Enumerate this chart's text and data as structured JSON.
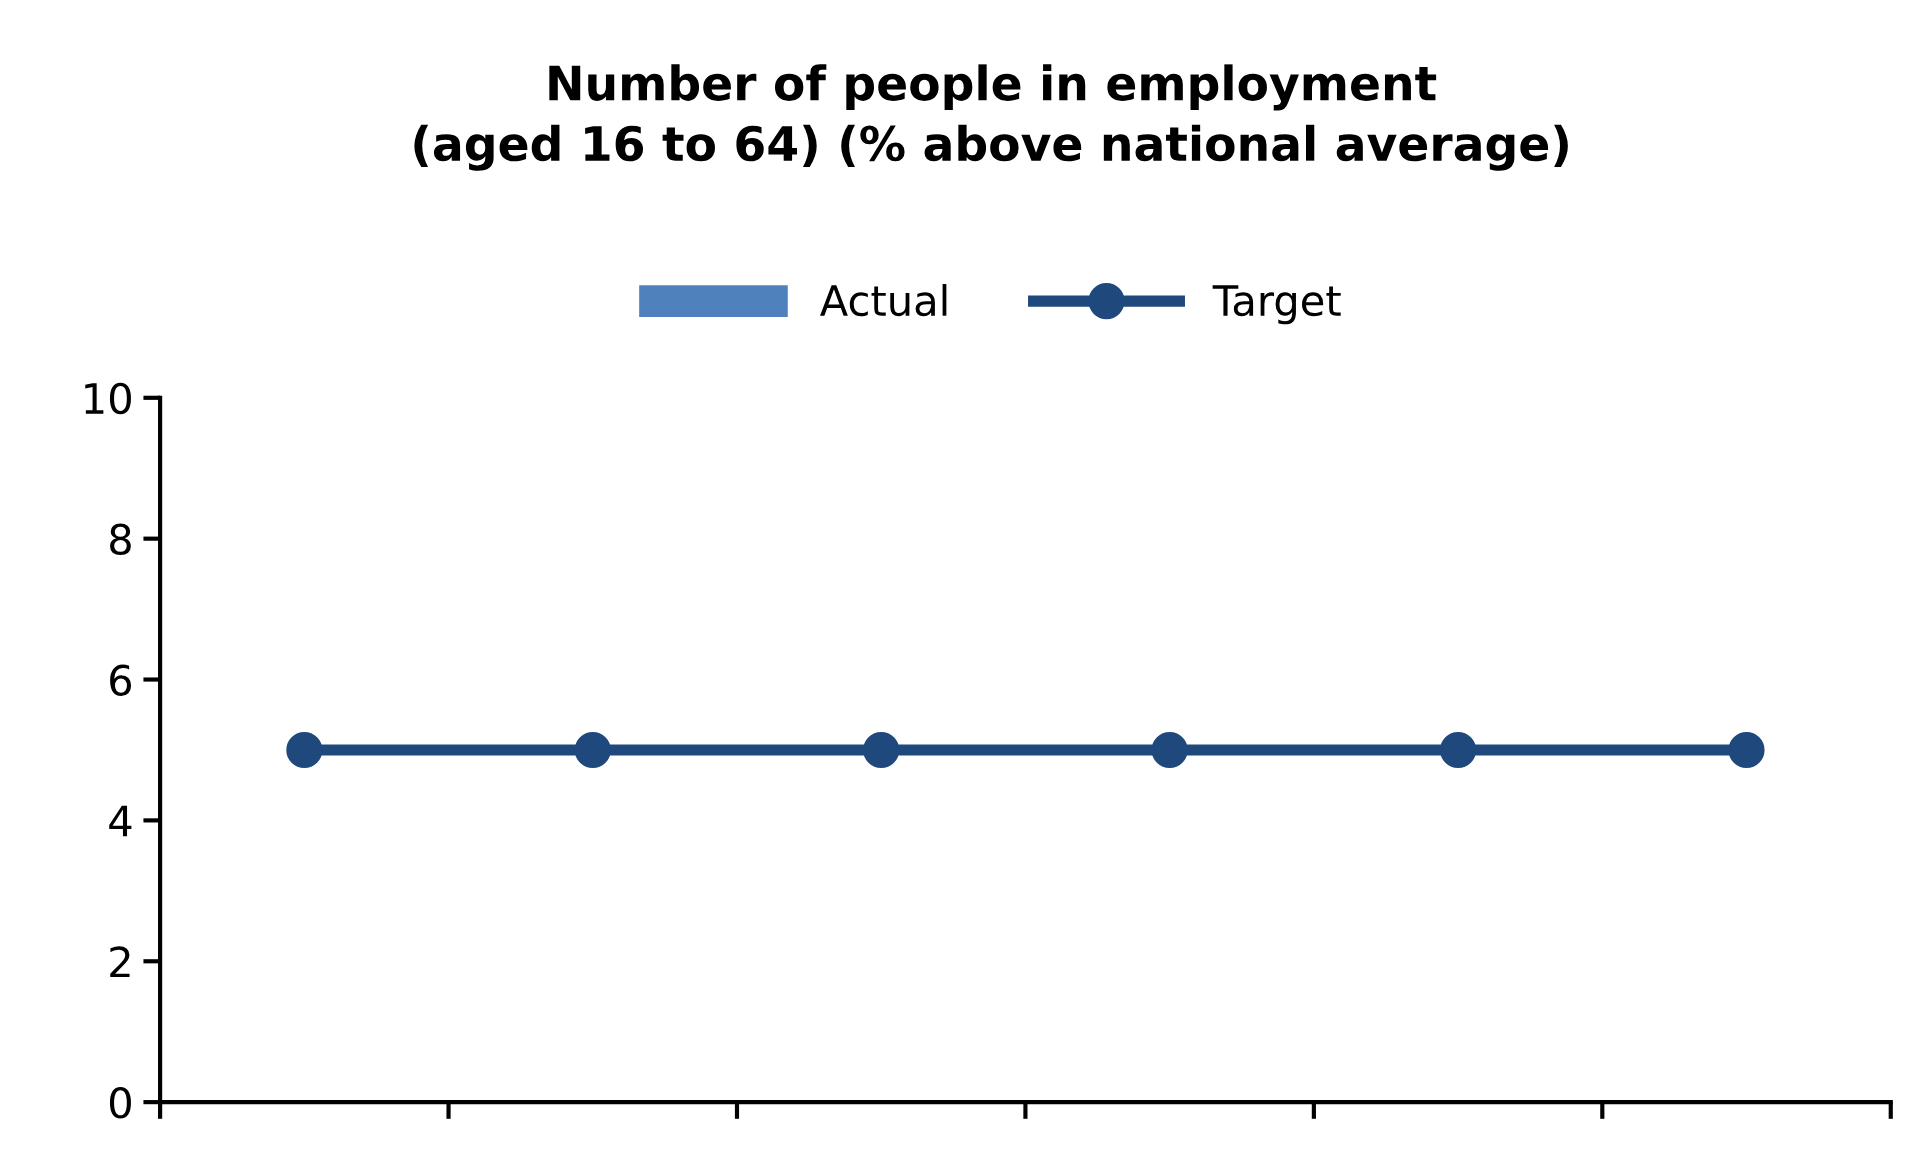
{
  "chart_data": {
    "type": "bar",
    "title": "Number of people in employment\n(aged 16 to 64) (% above national average)",
    "categories": [
      null,
      null,
      null,
      null,
      null,
      null
    ],
    "series": [
      {
        "name": "Actual",
        "color": "#4f81bd",
        "values": [
          null,
          null,
          null,
          null,
          null,
          null
        ]
      },
      {
        "name": "Target",
        "type": "line",
        "color": "#1f497d",
        "values": [
          5,
          5,
          5,
          5,
          5,
          5
        ]
      }
    ],
    "ylim": [
      0,
      10
    ],
    "yticks": [
      0,
      2,
      4,
      6,
      8,
      10
    ],
    "legend": "top",
    "marker": "circle",
    "line_style": "solid",
    "grid": false
  }
}
